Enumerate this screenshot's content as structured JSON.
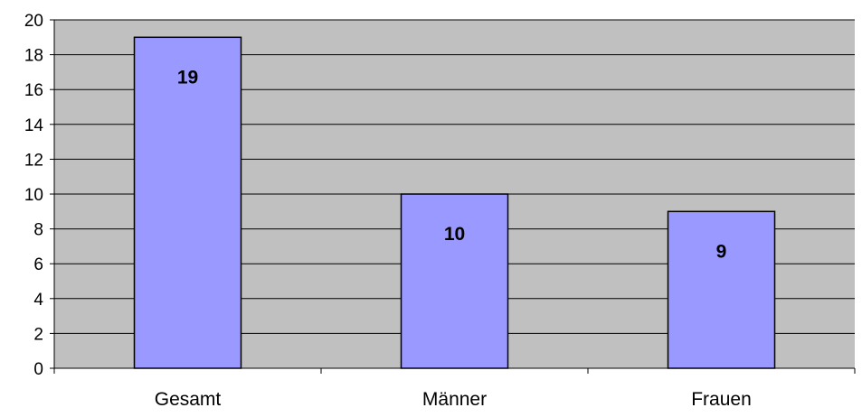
{
  "chart_data": {
    "type": "bar",
    "categories": [
      "Gesamt",
      "Männer",
      "Frauen"
    ],
    "values": [
      19,
      10,
      9
    ],
    "data_labels": [
      "19",
      "10",
      "9"
    ],
    "title": "",
    "xlabel": "",
    "ylabel": "",
    "ylim": [
      0,
      20
    ],
    "yticks": [
      0,
      2,
      4,
      6,
      8,
      10,
      12,
      14,
      16,
      18,
      20
    ],
    "ytick_labels": [
      "0",
      "2",
      "4",
      "6",
      "8",
      "10",
      "12",
      "14",
      "16",
      "18",
      "20"
    ],
    "grid": true,
    "legend": "none",
    "colors": {
      "plot_background": "#C0C0C0",
      "bar_fill": "#9999FF",
      "bar_stroke": "#000000",
      "gridline": "#000000"
    }
  }
}
